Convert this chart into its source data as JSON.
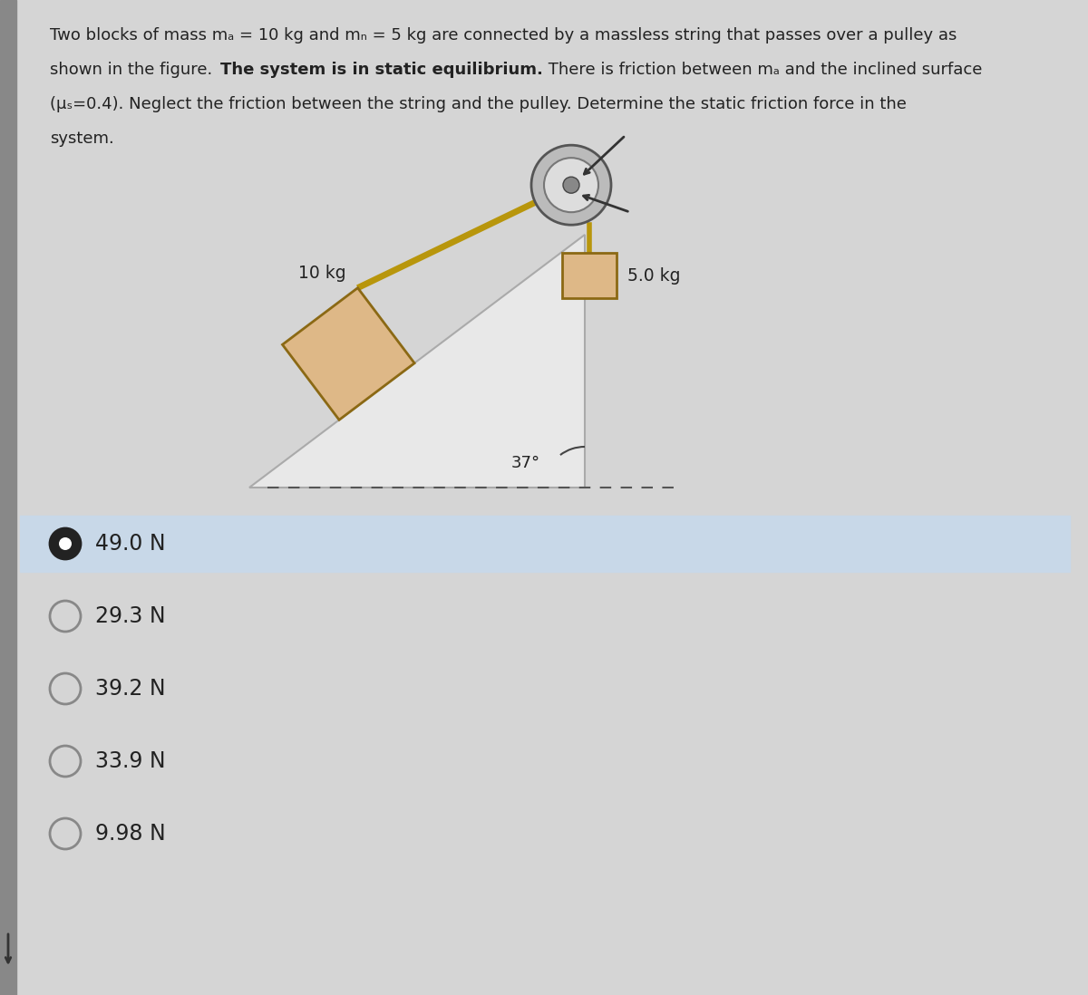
{
  "bg_color": "#d5d5d5",
  "text_color": "#222222",
  "answers": [
    "49.0 N",
    "29.3 N",
    "39.2 N",
    "33.9 N",
    "9.98 N"
  ],
  "selected_index": 0,
  "mass_A": "10 kg",
  "mass_B": "5.0 kg",
  "block_color": "#deb887",
  "block_outline": "#8b6914",
  "rope_color": "#b8960c",
  "selected_bg": "#c8d8e8",
  "option_circle_color": "#888888",
  "sidebar_color": "#888888",
  "incline_face": "#e8e8e8",
  "incline_edge": "#aaaaaa",
  "pulley_outer": "#aaaaaa",
  "pulley_mid": "#cccccc",
  "pulley_hub": "#777777"
}
